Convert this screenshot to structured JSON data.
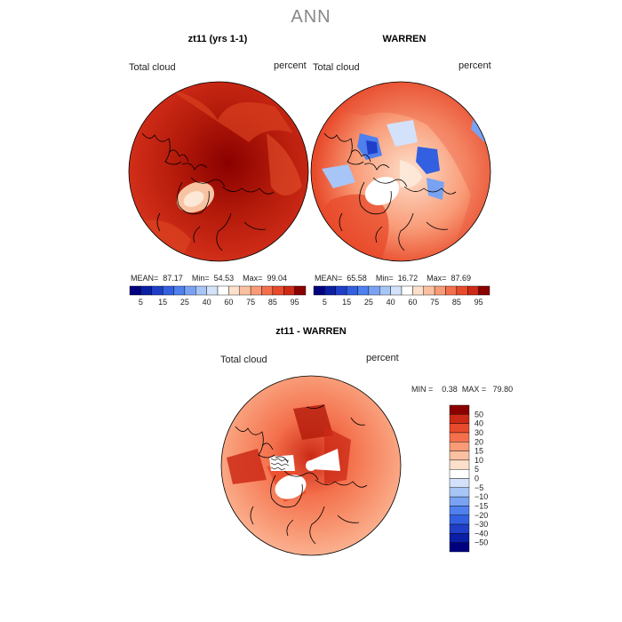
{
  "main_title": "ANN",
  "panels": [
    {
      "title": "zt11 (yrs 1-1)",
      "variable_label": "Total cloud",
      "units_label": "percent",
      "stats": {
        "mean_label": "MEAN=",
        "mean": "87.17",
        "min_label": "Min=",
        "min": "54.53",
        "max_label": "Max=",
        "max": "99.04"
      }
    },
    {
      "title": "WARREN",
      "variable_label": "Total cloud",
      "units_label": "percent",
      "stats": {
        "mean_label": "MEAN=",
        "mean": "65.58",
        "min_label": "Min=",
        "min": "16.72",
        "max_label": "Max=",
        "max": "87.69"
      }
    },
    {
      "title": "zt11 - WARREN",
      "variable_label": "Total cloud",
      "units_label": "percent",
      "stats": {
        "min_label": "MIN =",
        "min": "0.38",
        "max_label": "MAX =",
        "max": "79.80"
      }
    }
  ],
  "chart_data": [
    {
      "type": "heatmap",
      "projection": "north polar stereographic",
      "title": "zt11 (yrs 1-1)",
      "colorbar": {
        "orientation": "horizontal",
        "levels": [
          5,
          10,
          15,
          20,
          25,
          30,
          40,
          50,
          60,
          70,
          75,
          80,
          85,
          90,
          95
        ],
        "tick_labels": [
          "5",
          "15",
          "25",
          "40",
          "60",
          "75",
          "85",
          "95"
        ],
        "colors": [
          "#00007f",
          "#0a1fa5",
          "#1f3fc8",
          "#3260e0",
          "#4f80ee",
          "#79a3f2",
          "#a7c5f6",
          "#d3e2fa",
          "#ffffff",
          "#fde0cc",
          "#fbc0a1",
          "#f99b77",
          "#f4704c",
          "#e84b2b",
          "#cc2a16",
          "#8a0000"
        ]
      }
    },
    {
      "type": "heatmap",
      "projection": "north polar stereographic",
      "title": "WARREN",
      "colorbar": {
        "orientation": "horizontal",
        "levels": [
          5,
          10,
          15,
          20,
          25,
          30,
          40,
          50,
          60,
          70,
          75,
          80,
          85,
          90,
          95
        ],
        "tick_labels": [
          "5",
          "15",
          "25",
          "40",
          "60",
          "75",
          "85",
          "95"
        ],
        "colors": [
          "#00007f",
          "#0a1fa5",
          "#1f3fc8",
          "#3260e0",
          "#4f80ee",
          "#79a3f2",
          "#a7c5f6",
          "#d3e2fa",
          "#ffffff",
          "#fde0cc",
          "#fbc0a1",
          "#f99b77",
          "#f4704c",
          "#e84b2b",
          "#cc2a16",
          "#8a0000"
        ]
      }
    },
    {
      "type": "heatmap",
      "projection": "north polar stereographic",
      "title": "zt11 - WARREN",
      "colorbar": {
        "orientation": "vertical",
        "levels": [
          -50,
          -40,
          -30,
          -20,
          -15,
          -10,
          -5,
          0,
          5,
          10,
          15,
          20,
          30,
          40,
          50
        ],
        "tick_labels": [
          "50",
          "40",
          "30",
          "20",
          "15",
          "10",
          "5",
          "0",
          "−5",
          "−10",
          "−15",
          "−20",
          "−30",
          "−40",
          "−50"
        ],
        "colors": [
          "#00007f",
          "#0a1fa5",
          "#1f3fc8",
          "#3260e0",
          "#4f80ee",
          "#79a3f2",
          "#a7c5f6",
          "#d3e2fa",
          "#ffffff",
          "#fde0cc",
          "#fbc0a1",
          "#f99b77",
          "#f4704c",
          "#e84b2b",
          "#cc2a16",
          "#8a0000"
        ]
      }
    }
  ]
}
